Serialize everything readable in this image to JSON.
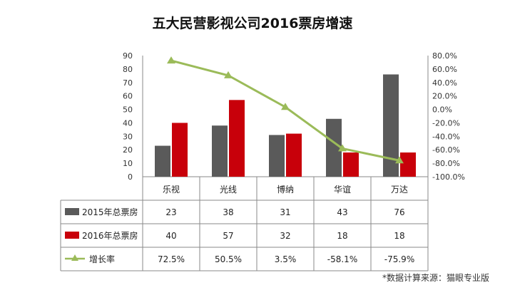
{
  "chart_data": {
    "type": "bar",
    "title": "五大民营影视公司2016票房增速",
    "categories": [
      "乐视",
      "光线",
      "博纳",
      "华谊",
      "万达"
    ],
    "series": [
      {
        "name": "2015年总票房",
        "kind": "bar",
        "axis": "left",
        "color": "#5a5a5a",
        "values": [
          23,
          38,
          31,
          43,
          76
        ]
      },
      {
        "name": "2016年总票房",
        "kind": "bar",
        "axis": "left",
        "color": "#c8000a",
        "values": [
          40,
          57,
          32,
          18,
          18
        ]
      },
      {
        "name": "增长率",
        "kind": "line",
        "axis": "right",
        "color": "#9bbb59",
        "marker": "triangle",
        "values": [
          72.5,
          50.5,
          3.5,
          -58.1,
          -75.9
        ],
        "labels": [
          "72.5%",
          "50.5%",
          "3.5%",
          "-58.1%",
          "-75.9%"
        ]
      }
    ],
    "y_left": {
      "min": 0,
      "max": 90,
      "step": 10,
      "ticks": [
        "0",
        "10",
        "20",
        "30",
        "40",
        "50",
        "60",
        "70",
        "80",
        "90"
      ]
    },
    "y_right": {
      "min": -100,
      "max": 80,
      "step": 20,
      "ticks": [
        "-100.0%",
        "-80.0%",
        "-60.0%",
        "-40.0%",
        "-20.0%",
        "0.0%",
        "20.0%",
        "40.0%",
        "60.0%",
        "80.0%"
      ]
    },
    "legend": "data-table-below",
    "grid": false
  },
  "footnote": "*数据计算来源：猫眼专业版"
}
